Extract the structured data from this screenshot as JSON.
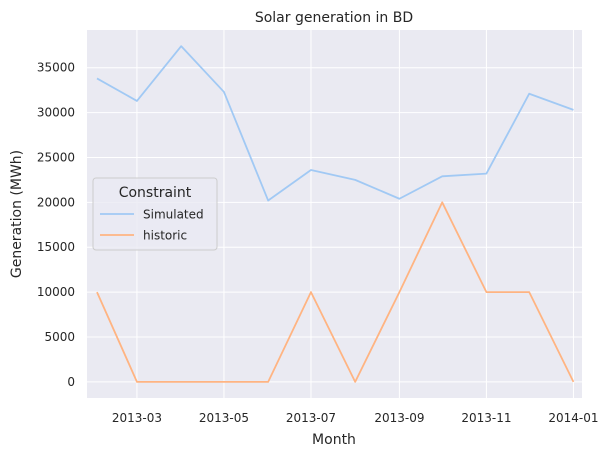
{
  "chart_data": {
    "type": "line",
    "title": "Solar generation in BD",
    "xlabel": "Month",
    "ylabel": "Generation (MWh)",
    "x_type": "date",
    "xlim": [
      "2013-01-25",
      "2014-01-07"
    ],
    "ylim": [
      -1800,
      39200
    ],
    "x_ticks": [
      {
        "date": "2013-03-01",
        "label": "2013-03"
      },
      {
        "date": "2013-05-01",
        "label": "2013-05"
      },
      {
        "date": "2013-07-01",
        "label": "2013-07"
      },
      {
        "date": "2013-09-01",
        "label": "2013-09"
      },
      {
        "date": "2013-11-01",
        "label": "2013-11"
      },
      {
        "date": "2014-01-01",
        "label": "2014-01"
      }
    ],
    "y_ticks": [
      0,
      5000,
      10000,
      15000,
      20000,
      25000,
      30000,
      35000
    ],
    "y_tick_labels": [
      "0",
      "5000",
      "10000",
      "15000",
      "20000",
      "25000",
      "30000",
      "35000"
    ],
    "grid": true,
    "background": "#eaeaf2",
    "legend": {
      "title": "Constraint",
      "position": "center-left"
    },
    "x": [
      "2013-02-01",
      "2013-03-01",
      "2013-04-01",
      "2013-05-01",
      "2013-06-01",
      "2013-07-01",
      "2013-08-01",
      "2013-09-01",
      "2013-10-01",
      "2013-11-01",
      "2013-12-01",
      "2014-01-01"
    ],
    "series": [
      {
        "name": "Simulated",
        "color": "#a1c9f4",
        "values": [
          33800,
          31300,
          37400,
          32300,
          20200,
          23600,
          22500,
          20400,
          22900,
          23200,
          32100,
          30300
        ]
      },
      {
        "name": "historic",
        "color": "#ffb482",
        "values": [
          10000,
          0,
          0,
          0,
          0,
          10000,
          0,
          10000,
          20000,
          10000,
          10000,
          0
        ]
      }
    ]
  }
}
